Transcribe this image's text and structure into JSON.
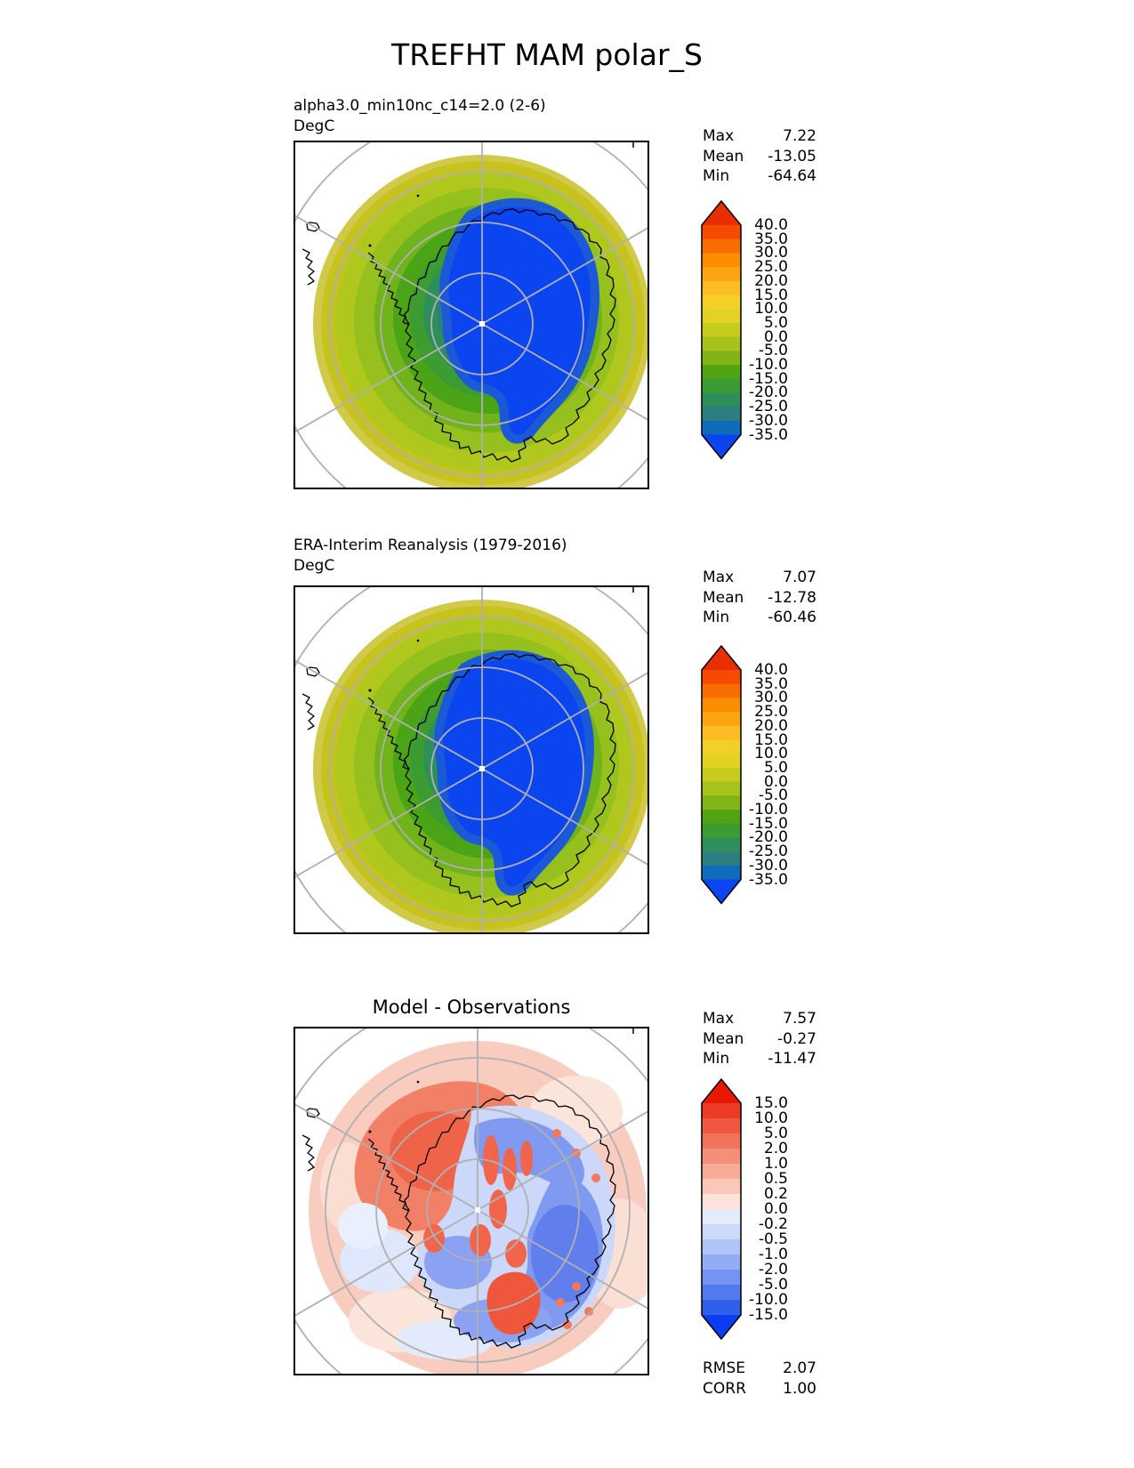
{
  "figure": {
    "title": "TREFHT MAM polar_S"
  },
  "panels": [
    {
      "label": "alpha3.0_min10nc_c14=2.0 (2-6)",
      "units": "DegC",
      "stats": [
        {
          "name": "Max",
          "value": "7.22"
        },
        {
          "name": "Mean",
          "value": "-13.05"
        },
        {
          "name": "Min",
          "value": "-64.64"
        }
      ],
      "colorbar": {
        "labels": [
          "40.0",
          "35.0",
          "30.0",
          "25.0",
          "20.0",
          "15.0",
          "10.0",
          "5.0",
          "0.0",
          "-5.0",
          "-10.0",
          "-15.0",
          "-20.0",
          "-25.0",
          "-30.0",
          "-35.0"
        ],
        "colors": [
          "#e92f00",
          "#f64a00",
          "#f76d00",
          "#fb8e00",
          "#fba510",
          "#fcbe24",
          "#f3d028",
          "#e3d224",
          "#c6cc1e",
          "#a6c31c",
          "#82b418",
          "#51a513",
          "#3d9b34",
          "#2e8f5a",
          "#2d7e80",
          "#0f6cbb",
          "#0a45ef"
        ]
      }
    },
    {
      "label": "ERA-Interim Reanalysis (1979-2016)",
      "units": "DegC",
      "stats": [
        {
          "name": "Max",
          "value": "7.07"
        },
        {
          "name": "Mean",
          "value": "-12.78"
        },
        {
          "name": "Min",
          "value": "-60.46"
        }
      ],
      "colorbar": {
        "labels": [
          "40.0",
          "35.0",
          "30.0",
          "25.0",
          "20.0",
          "15.0",
          "10.0",
          "5.0",
          "0.0",
          "-5.0",
          "-10.0",
          "-15.0",
          "-20.0",
          "-25.0",
          "-30.0",
          "-35.0"
        ],
        "colors": [
          "#e92f00",
          "#f64a00",
          "#f76d00",
          "#fb8e00",
          "#fba510",
          "#fcbe24",
          "#f3d028",
          "#e3d224",
          "#c6cc1e",
          "#a6c31c",
          "#82b418",
          "#51a513",
          "#3d9b34",
          "#2e8f5a",
          "#2d7e80",
          "#0f6cbb",
          "#0a45ef"
        ]
      }
    },
    {
      "label": "Model - Observations",
      "stats": [
        {
          "name": "Max",
          "value": "7.57"
        },
        {
          "name": "Mean",
          "value": "-0.27"
        },
        {
          "name": "Min",
          "value": "-11.47"
        }
      ],
      "extra_stats": [
        {
          "name": "RMSE",
          "value": "2.07"
        },
        {
          "name": "CORR",
          "value": "1.00"
        }
      ],
      "colorbar": {
        "labels": [
          "15.0",
          "10.0",
          "5.0",
          "2.0",
          "1.0",
          "0.5",
          "0.2",
          "0.0",
          "-0.2",
          "-0.5",
          "-1.0",
          "-2.0",
          "-5.0",
          "-10.0",
          "-15.0"
        ],
        "colors": [
          "#e81800",
          "#ec3d24",
          "#ef5740",
          "#f2735c",
          "#f58f7a",
          "#f8ab98",
          "#fac7b8",
          "#fde3da",
          "#e4ebfb",
          "#ccd9f9",
          "#b0c4f7",
          "#92adf4",
          "#7394f0",
          "#527aec",
          "#2f5fe8",
          "#0a3cf4"
        ]
      }
    }
  ],
  "chart_data": [
    {
      "type": "heatmap",
      "subtype": "polar-stereographic-contour-map",
      "panel": "model",
      "title": "alpha3.0_min10nc_c14=2.0 (2-6)",
      "variable": "TREFHT",
      "season": "MAM",
      "region": "polar_S",
      "units": "DegC",
      "contour_levels": [
        -35,
        -30,
        -25,
        -20,
        -15,
        -10,
        -5,
        0,
        5,
        10,
        15,
        20,
        25,
        30,
        35,
        40
      ],
      "stats": {
        "Max": 7.22,
        "Mean": -13.05,
        "Min": -64.64
      },
      "legend_position": "right"
    },
    {
      "type": "heatmap",
      "subtype": "polar-stereographic-contour-map",
      "panel": "observations",
      "title": "ERA-Interim Reanalysis (1979-2016)",
      "variable": "TREFHT",
      "season": "MAM",
      "region": "polar_S",
      "units": "DegC",
      "contour_levels": [
        -35,
        -30,
        -25,
        -20,
        -15,
        -10,
        -5,
        0,
        5,
        10,
        15,
        20,
        25,
        30,
        35,
        40
      ],
      "stats": {
        "Max": 7.07,
        "Mean": -12.78,
        "Min": -60.46
      },
      "legend_position": "right"
    },
    {
      "type": "heatmap",
      "subtype": "polar-stereographic-contour-map",
      "panel": "difference",
      "title": "Model - Observations",
      "variable": "TREFHT",
      "season": "MAM",
      "region": "polar_S",
      "contour_levels": [
        -15,
        -10,
        -5,
        -2,
        -1,
        -0.5,
        -0.2,
        0,
        0.2,
        0.5,
        1,
        2,
        5,
        10,
        15
      ],
      "stats": {
        "Max": 7.57,
        "Mean": -0.27,
        "Min": -11.47,
        "RMSE": 2.07,
        "CORR": 1.0
      },
      "legend_position": "right"
    }
  ]
}
